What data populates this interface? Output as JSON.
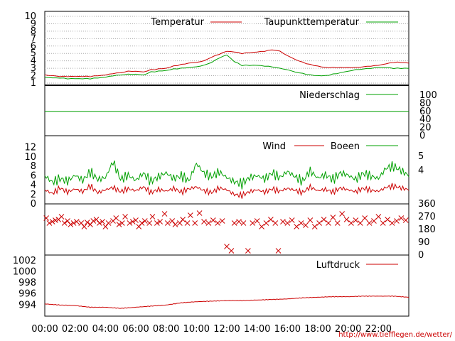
{
  "footer_url": "http://www.tiefflegen.de/wetter/",
  "colors": {
    "red": "#cc0000",
    "green": "#00a000",
    "grid": "#999999"
  },
  "chart_data": [
    {
      "id": "temp",
      "type": "line",
      "ylim": [
        1,
        10
      ],
      "yticks": [
        "10",
        "9",
        "8",
        "7",
        "6",
        "5",
        "4",
        "3",
        "2",
        "1"
      ],
      "grid": true,
      "legend": [
        "Temperatur",
        "Taupunkttemperatur"
      ],
      "x_hours": [
        0,
        0.5,
        1,
        1.5,
        2,
        2.5,
        3,
        3.5,
        4,
        4.5,
        5,
        5.5,
        6,
        6.5,
        7,
        7.5,
        8,
        8.5,
        9,
        9.5,
        10,
        10.5,
        11,
        11.5,
        12,
        12.5,
        13,
        13.5,
        14,
        14.5,
        15,
        15.5,
        16,
        16.5,
        17,
        17.5,
        18,
        18.5,
        19,
        19.5,
        20,
        20.5,
        21,
        21.5,
        22,
        22.5,
        23,
        23.5,
        24
      ],
      "series": [
        {
          "name": "Temperatur",
          "color": "#cc0000",
          "values": [
            2.1,
            2.0,
            1.9,
            1.9,
            1.9,
            1.9,
            1.9,
            2.0,
            2.1,
            2.3,
            2.4,
            2.6,
            2.6,
            2.5,
            2.8,
            2.9,
            3.0,
            3.3,
            3.5,
            3.7,
            3.8,
            4.0,
            4.5,
            4.9,
            5.3,
            5.2,
            5.0,
            5.1,
            5.2,
            5.3,
            5.5,
            5.3,
            4.7,
            4.2,
            3.8,
            3.5,
            3.3,
            3.1,
            3.1,
            3.1,
            3.1,
            3.1,
            3.2,
            3.3,
            3.4,
            3.6,
            3.8,
            3.8,
            3.7
          ]
        },
        {
          "name": "Taupunkttemperatur",
          "color": "#00a000",
          "values": [
            1.8,
            1.7,
            1.7,
            1.6,
            1.6,
            1.6,
            1.6,
            1.7,
            1.8,
            2.0,
            2.1,
            2.2,
            2.2,
            2.1,
            2.5,
            2.6,
            2.7,
            2.9,
            3.0,
            3.1,
            3.2,
            3.4,
            3.8,
            4.4,
            4.8,
            3.9,
            3.4,
            3.4,
            3.4,
            3.3,
            3.2,
            3.0,
            2.8,
            2.5,
            2.3,
            2.1,
            2.0,
            2.0,
            2.2,
            2.4,
            2.6,
            2.8,
            2.9,
            3.0,
            3.1,
            3.1,
            3.0,
            3.0,
            3.0
          ]
        }
      ]
    },
    {
      "id": "rain",
      "type": "line",
      "ylim": [
        0,
        100
      ],
      "yticks": [
        "100",
        "80",
        "60",
        "40",
        "20",
        "0"
      ],
      "legend": [
        "Niederschlag"
      ],
      "series": [
        {
          "name": "Niederschlag",
          "color": "#00a000",
          "values": [
            60
          ]
        }
      ]
    },
    {
      "id": "wind",
      "type": "line",
      "ylim": [
        0,
        13
      ],
      "yticks": [
        "12",
        "10",
        "8",
        "6",
        "4",
        "2",
        "0"
      ],
      "yticks_right": [
        "5",
        "4"
      ],
      "legend": [
        "Wind",
        "Boeen"
      ],
      "x_hours": [
        0,
        0.5,
        1,
        1.5,
        2,
        2.5,
        3,
        3.5,
        4,
        4.5,
        5,
        5.5,
        6,
        6.5,
        7,
        7.5,
        8,
        8.5,
        9,
        9.5,
        10,
        10.5,
        11,
        11.5,
        12,
        12.5,
        13,
        13.5,
        14,
        14.5,
        15,
        15.5,
        16,
        16.5,
        17,
        17.5,
        18,
        18.5,
        19,
        19.5,
        20,
        20.5,
        21,
        21.5,
        22,
        22.5,
        23,
        23.5,
        24
      ],
      "series": [
        {
          "name": "Wind",
          "color": "#cc0000",
          "values": [
            3.0,
            2.2,
            3.4,
            2.5,
            3.2,
            2.6,
            3.8,
            2.4,
            3.0,
            3.5,
            2.6,
            3.2,
            2.8,
            3.6,
            2.4,
            3.1,
            2.7,
            3.3,
            2.5,
            3.2,
            3.6,
            2.8,
            2.4,
            3.4,
            3.0,
            2.0,
            1.8,
            2.6,
            3.0,
            2.5,
            3.2,
            2.7,
            3.3,
            2.9,
            2.4,
            3.6,
            2.8,
            3.1,
            2.5,
            3.4,
            3.0,
            2.6,
            3.3,
            2.9,
            2.7,
            3.5,
            3.8,
            3.4,
            3.0
          ]
        },
        {
          "name": "Boeen",
          "color": "#00a000",
          "values": [
            6.0,
            4.6,
            5.4,
            4.8,
            6.1,
            5.0,
            6.8,
            5.2,
            5.6,
            9.0,
            5.2,
            6.1,
            5.0,
            6.5,
            4.8,
            5.8,
            6.6,
            5.4,
            6.0,
            4.9,
            8.6,
            6.5,
            5.8,
            6.8,
            5.6,
            4.7,
            4.3,
            5.6,
            6.0,
            5.3,
            6.6,
            5.6,
            6.9,
            5.8,
            4.8,
            7.0,
            5.5,
            6.2,
            5.2,
            6.6,
            6.1,
            5.2,
            6.5,
            5.9,
            5.4,
            7.6,
            8.0,
            7.1,
            6.0
          ]
        }
      ]
    },
    {
      "id": "direction",
      "type": "scatter",
      "ylim": [
        0,
        360
      ],
      "yticks_right": [
        "360",
        "270",
        "180",
        "90",
        "0"
      ],
      "points": [
        [
          0.1,
          260
        ],
        [
          0.3,
          225
        ],
        [
          0.5,
          235
        ],
        [
          0.7,
          245
        ],
        [
          0.9,
          250
        ],
        [
          1.1,
          270
        ],
        [
          1.3,
          225
        ],
        [
          1.5,
          240
        ],
        [
          1.7,
          215
        ],
        [
          1.9,
          225
        ],
        [
          2.1,
          235
        ],
        [
          2.4,
          225
        ],
        [
          2.6,
          200
        ],
        [
          2.8,
          230
        ],
        [
          3.0,
          215
        ],
        [
          3.2,
          240
        ],
        [
          3.4,
          250
        ],
        [
          3.6,
          225
        ],
        [
          3.8,
          235
        ],
        [
          4.0,
          200
        ],
        [
          4.2,
          225
        ],
        [
          4.5,
          240
        ],
        [
          4.7,
          260
        ],
        [
          4.9,
          215
        ],
        [
          5.1,
          225
        ],
        [
          5.3,
          270
        ],
        [
          5.6,
          225
        ],
        [
          5.8,
          235
        ],
        [
          6.0,
          245
        ],
        [
          6.2,
          200
        ],
        [
          6.4,
          225
        ],
        [
          6.6,
          240
        ],
        [
          6.9,
          225
        ],
        [
          7.1,
          270
        ],
        [
          7.4,
          225
        ],
        [
          7.6,
          235
        ],
        [
          7.9,
          290
        ],
        [
          8.1,
          225
        ],
        [
          8.4,
          240
        ],
        [
          8.6,
          215
        ],
        [
          8.9,
          225
        ],
        [
          9.1,
          250
        ],
        [
          9.4,
          225
        ],
        [
          9.6,
          280
        ],
        [
          9.9,
          225
        ],
        [
          10.2,
          295
        ],
        [
          10.5,
          235
        ],
        [
          10.8,
          225
        ],
        [
          11.1,
          245
        ],
        [
          11.4,
          225
        ],
        [
          11.7,
          240
        ],
        [
          12.0,
          60
        ],
        [
          12.3,
          30
        ],
        [
          12.5,
          225
        ],
        [
          12.8,
          235
        ],
        [
          13.1,
          225
        ],
        [
          13.4,
          30
        ],
        [
          13.7,
          225
        ],
        [
          14.0,
          240
        ],
        [
          14.3,
          200
        ],
        [
          14.6,
          225
        ],
        [
          14.9,
          250
        ],
        [
          15.2,
          225
        ],
        [
          15.4,
          30
        ],
        [
          15.7,
          235
        ],
        [
          16.0,
          225
        ],
        [
          16.3,
          245
        ],
        [
          16.6,
          200
        ],
        [
          16.9,
          225
        ],
        [
          17.2,
          210
        ],
        [
          17.5,
          245
        ],
        [
          17.8,
          200
        ],
        [
          18.1,
          225
        ],
        [
          18.4,
          250
        ],
        [
          18.7,
          225
        ],
        [
          19.0,
          265
        ],
        [
          19.3,
          225
        ],
        [
          19.6,
          290
        ],
        [
          19.9,
          250
        ],
        [
          20.2,
          225
        ],
        [
          20.5,
          245
        ],
        [
          20.8,
          225
        ],
        [
          21.1,
          260
        ],
        [
          21.4,
          225
        ],
        [
          21.7,
          240
        ],
        [
          22.0,
          270
        ],
        [
          22.3,
          225
        ],
        [
          22.6,
          250
        ],
        [
          22.9,
          225
        ],
        [
          23.2,
          240
        ],
        [
          23.5,
          260
        ],
        [
          23.8,
          245
        ]
      ]
    },
    {
      "id": "pressure",
      "type": "line",
      "ylim": [
        992,
        1003
      ],
      "yticks": [
        "1002",
        "1000",
        "998",
        "996",
        "994"
      ],
      "legend": [
        "Luftdruck"
      ],
      "x_hours": [
        0,
        1,
        2,
        3,
        4,
        5,
        6,
        7,
        8,
        9,
        10,
        11,
        12,
        13,
        14,
        15,
        16,
        17,
        18,
        19,
        20,
        21,
        22,
        23,
        24
      ],
      "series": [
        {
          "name": "Luftdruck",
          "color": "#cc0000",
          "values": [
            994.2,
            994.0,
            993.9,
            993.6,
            993.6,
            993.4,
            993.6,
            993.8,
            994.0,
            994.4,
            994.6,
            994.7,
            994.8,
            994.8,
            994.9,
            995.0,
            995.1,
            995.3,
            995.4,
            995.5,
            995.5,
            995.6,
            995.6,
            995.6,
            995.4
          ]
        }
      ]
    }
  ],
  "xticks": [
    "00:00",
    "02:00",
    "04:00",
    "06:00",
    "08:00",
    "10:00",
    "12:00",
    "14:00",
    "16:00",
    "18:00",
    "20:00",
    "22:00"
  ]
}
